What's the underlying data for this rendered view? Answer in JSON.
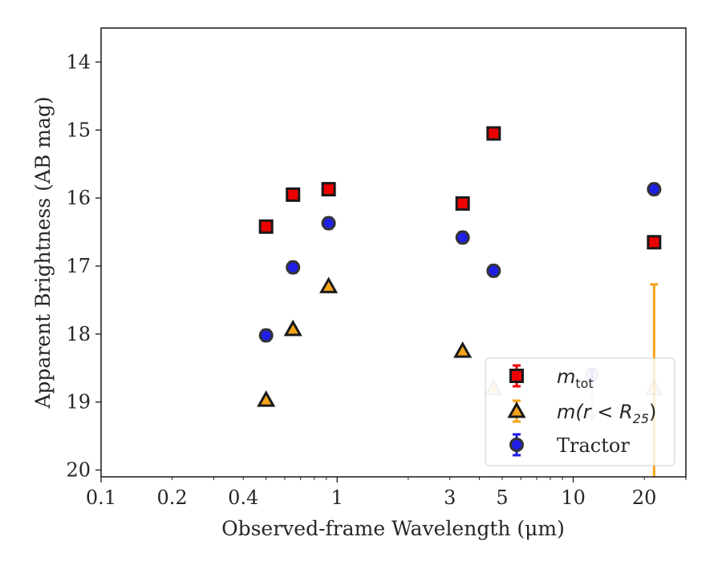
{
  "chart_data": {
    "type": "scatter",
    "xlabel": "Observed-frame Wavelength (μm)",
    "ylabel": "Apparent Brightness (AB mag)",
    "xscale": "log",
    "xlim": [
      0.1,
      30
    ],
    "ylim": [
      20.1,
      13.5
    ],
    "y_inverted": true,
    "x_ticks": [
      0.1,
      0.2,
      0.4,
      1,
      3,
      5,
      10,
      20
    ],
    "x_tick_labels": [
      "0.1",
      "0.2",
      "0.4",
      "1",
      "3",
      "5",
      "10",
      "20"
    ],
    "y_ticks": [
      14,
      15,
      16,
      17,
      18,
      19,
      20
    ],
    "y_tick_labels": [
      "14",
      "15",
      "16",
      "17",
      "18",
      "19",
      "20"
    ],
    "grid": false,
    "legend_position": "lower-right",
    "series": [
      {
        "name": "m_tot",
        "marker": "square",
        "color": "#ee0000",
        "edge_color": "#1a1a1a",
        "error_color": "#ee0000",
        "points": [
          {
            "x": 0.5,
            "y": 16.42,
            "err": 0.05
          },
          {
            "x": 0.65,
            "y": 15.95,
            "err": 0.04
          },
          {
            "x": 0.92,
            "y": 15.87,
            "err": 0.06
          },
          {
            "x": 3.4,
            "y": 16.08,
            "err": 0.04
          },
          {
            "x": 4.6,
            "y": 15.05,
            "err": 0.03
          },
          {
            "x": 22,
            "y": 16.65,
            "err": 0.06
          }
        ]
      },
      {
        "name": "m(r < R25)",
        "marker": "triangle",
        "color": "#f5a31a",
        "edge_color": "#1a1a1a",
        "error_color": "#f5a31a",
        "points": [
          {
            "x": 0.5,
            "y": 18.97,
            "err": 0.03
          },
          {
            "x": 0.65,
            "y": 17.93,
            "err": 0.03
          },
          {
            "x": 0.92,
            "y": 17.3,
            "err": 0.03
          },
          {
            "x": 3.4,
            "y": 18.25,
            "err": 0.03
          },
          {
            "x": 4.6,
            "y": 18.8,
            "err": 0.03,
            "faded": true
          },
          {
            "x": 22,
            "y": 18.8,
            "err": 0.03,
            "faded": true,
            "error_low": 17.27,
            "error_high": 20.1
          }
        ]
      },
      {
        "name": "Tractor",
        "marker": "circle",
        "color": "#1f1fe8",
        "edge_color": "#333333",
        "error_color": "#1f1fe8",
        "points": [
          {
            "x": 0.5,
            "y": 18.02,
            "err": 0.08
          },
          {
            "x": 0.65,
            "y": 17.02,
            "err": 0.08
          },
          {
            "x": 0.92,
            "y": 16.37,
            "err": 0.08
          },
          {
            "x": 3.4,
            "y": 16.58,
            "err": 0.08
          },
          {
            "x": 4.6,
            "y": 17.07,
            "err": 0.08
          },
          {
            "x": 12,
            "y": 18.6,
            "err": 0.08,
            "faded": true,
            "upper_limit": true
          },
          {
            "x": 22,
            "y": 15.87,
            "err": 0.08
          }
        ]
      }
    ],
    "legend": [
      {
        "series": 0,
        "label_main": "m",
        "label_sub": "tot",
        "label_rest": ""
      },
      {
        "series": 1,
        "label_main": "m(r < R",
        "label_sub": "25",
        "label_rest": ")"
      },
      {
        "series": 2,
        "label_main": "Tractor",
        "label_sub": "",
        "label_rest": ""
      }
    ]
  }
}
